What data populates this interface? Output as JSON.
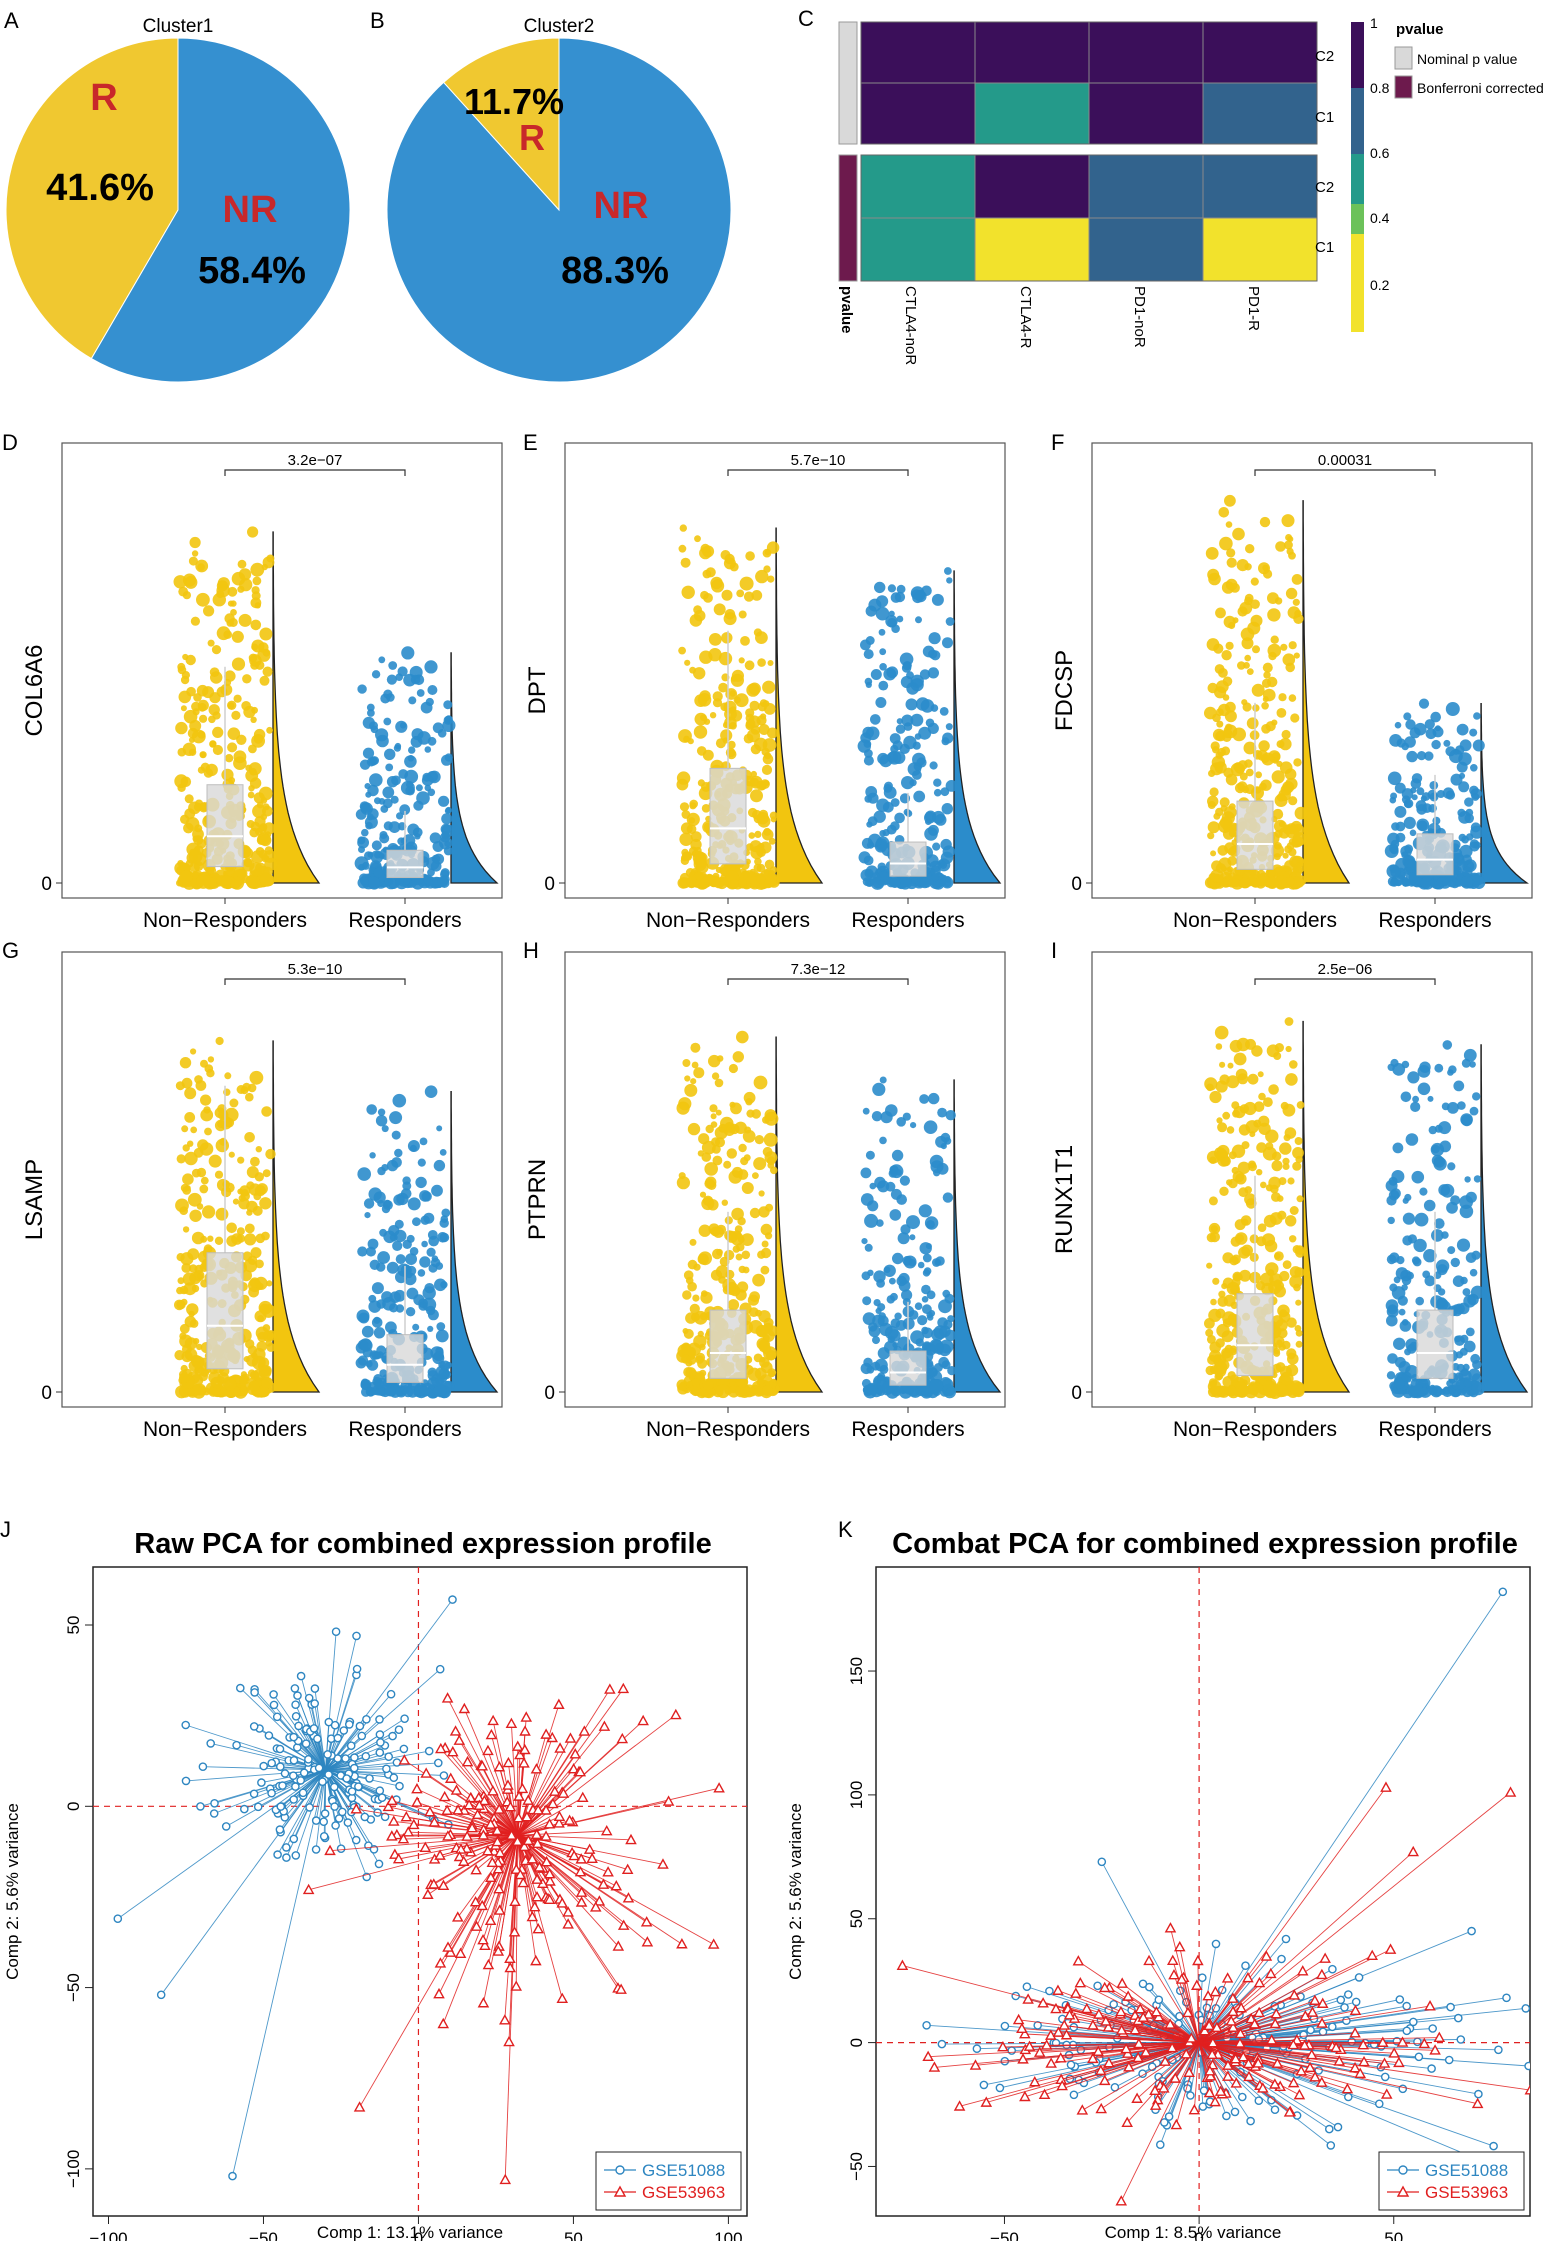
{
  "panel_letters": [
    "A",
    "B",
    "C",
    "D",
    "E",
    "F",
    "G",
    "H",
    "I",
    "J",
    "K"
  ],
  "chart_data": [
    {
      "panel": "A",
      "type": "pie",
      "title": "Cluster1",
      "slices": [
        {
          "label": "R",
          "pct_label": "41.6%",
          "value": 41.6,
          "color": "#f0c830"
        },
        {
          "label": "NR",
          "pct_label": "58.4%",
          "value": 58.4,
          "color": "#3590d0"
        }
      ]
    },
    {
      "panel": "B",
      "type": "pie",
      "title": "Cluster2",
      "slices": [
        {
          "label": "R",
          "pct_label": "11.7%",
          "value": 11.7,
          "color": "#f0c830"
        },
        {
          "label": "NR",
          "pct_label": "88.3%",
          "value": 88.3,
          "color": "#3590d0"
        }
      ]
    },
    {
      "panel": "C",
      "type": "heatmap",
      "columns": [
        "CTLA4-noR",
        "CTLA4-R",
        "PD1-noR",
        "PD1-R"
      ],
      "row_labels": [
        "C2",
        "C1",
        "C2",
        "C1"
      ],
      "row_groups": [
        "Nominal p value",
        "Nominal p value",
        "Bonferroni corrected",
        "Bonferroni corrected"
      ],
      "values": [
        [
          1,
          1,
          1,
          1
        ],
        [
          1,
          0.5,
          1,
          0.75
        ],
        [
          0.5,
          1,
          0.75,
          0.75
        ],
        [
          0.5,
          0.1,
          0.75,
          0.1
        ]
      ],
      "annotation_label": "pvalue",
      "legend": {
        "title": "pvalue",
        "ticks": [
          "1",
          "0.8",
          "0.6",
          "0.4",
          "0.2"
        ],
        "tick_values": [
          1,
          0.8,
          0.6,
          0.4,
          0.2
        ],
        "colors": [
          "#3b0f5a",
          "#32638d",
          "#249a8a",
          "#6cc25a",
          "#f2e22c"
        ],
        "group_entries": [
          {
            "label": "Nominal p value",
            "color": "#d9d9d9"
          },
          {
            "label": "Bonferroni corrected",
            "color": "#6d1a4d"
          }
        ]
      }
    },
    {
      "panel": "D",
      "type": "scatter",
      "ylabel": "COL6A6",
      "categories": [
        "Non−Responders",
        "Responders"
      ],
      "pvalue": "3.2e−07",
      "y_tick": "0",
      "nr_max": 0.9,
      "r_max": 0.59,
      "nr_median": 0.12,
      "r_median": 0.04
    },
    {
      "panel": "E",
      "type": "scatter",
      "ylabel": "DPT",
      "categories": [
        "Non−Responders",
        "Responders"
      ],
      "pvalue": "5.7e−10",
      "y_tick": "0",
      "nr_max": 0.91,
      "r_max": 0.8,
      "nr_median": 0.14,
      "r_median": 0.05
    },
    {
      "panel": "F",
      "type": "scatter",
      "ylabel": "FDCSP",
      "categories": [
        "Non−Responders",
        "Responders"
      ],
      "pvalue": "0.00031",
      "y_tick": "0",
      "nr_max": 0.98,
      "r_max": 0.46,
      "nr_median": 0.1,
      "r_median": 0.06
    },
    {
      "panel": "G",
      "type": "scatter",
      "ylabel": "LSAMP",
      "categories": [
        "Non−Responders",
        "Responders"
      ],
      "pvalue": "5.3e−10",
      "y_tick": "0",
      "nr_max": 0.9,
      "r_max": 0.77,
      "nr_median": 0.17,
      "r_median": 0.07
    },
    {
      "panel": "H",
      "type": "scatter",
      "ylabel": "PTPRN",
      "categories": [
        "Non−Responders",
        "Responders"
      ],
      "pvalue": "7.3e−12",
      "y_tick": "0",
      "nr_max": 0.91,
      "r_max": 0.8,
      "nr_median": 0.1,
      "r_median": 0.05
    },
    {
      "panel": "I",
      "type": "scatter",
      "ylabel": "RUNX1T1",
      "categories": [
        "Non−Responders",
        "Responders"
      ],
      "pvalue": "2.5e−06",
      "y_tick": "0",
      "nr_max": 0.95,
      "r_max": 0.89,
      "nr_median": 0.12,
      "r_median": 0.1
    },
    {
      "panel": "J",
      "type": "scatter",
      "title": "Raw PCA for combined expression profile",
      "xlabel": "Comp 1: 13.1% variance",
      "ylabel": "Comp 2: 5.6% variance",
      "xlim": [
        -105,
        106
      ],
      "ylim": [
        -113,
        66
      ],
      "x_ticks": [
        -100,
        -50,
        0,
        50,
        100
      ],
      "y_ticks": [
        -100,
        -50,
        0,
        50
      ],
      "x_tick_labels": [
        "−100",
        "−50",
        "0",
        "50",
        "100"
      ],
      "y_tick_labels": [
        "−100",
        "−50",
        "0",
        "50"
      ],
      "series": [
        {
          "name": "GSE51088",
          "color": "#2e86c1",
          "marker": "circle",
          "centroid": [
            -30,
            10
          ],
          "spread": [
            16,
            14
          ],
          "n": 180,
          "outliers": [
            [
              -60,
              -102
            ],
            [
              -97,
              -31
            ],
            [
              11,
              57
            ],
            [
              -20,
              47
            ],
            [
              -75,
              7
            ],
            [
              -83,
              -52
            ]
          ]
        },
        {
          "name": "GSE53963",
          "color": "#e02020",
          "marker": "triangle",
          "centroid": [
            32,
            -8
          ],
          "spread": [
            22,
            20
          ],
          "n": 220,
          "outliers": [
            [
              28,
              -103
            ],
            [
              -19,
              -83
            ],
            [
              97,
              5
            ],
            [
              85,
              -38
            ],
            [
              8,
              -60
            ],
            [
              60,
              22
            ]
          ]
        }
      ],
      "legend_position": "bottom-right"
    },
    {
      "panel": "K",
      "type": "scatter",
      "title": "Combat PCA for combined expression profile",
      "xlabel": "Comp 1: 8.5% variance",
      "ylabel": "Comp 2: 5.6% variance",
      "xlim": [
        -83,
        85
      ],
      "ylim": [
        -70,
        192
      ],
      "x_ticks": [
        -50,
        0,
        50
      ],
      "y_ticks": [
        -50,
        0,
        50,
        100,
        150
      ],
      "x_tick_labels": [
        "−50",
        "0",
        "50"
      ],
      "y_tick_labels": [
        "−50",
        "0",
        "50",
        "100",
        "150"
      ],
      "series": [
        {
          "name": "GSE51088",
          "color": "#2e86c1",
          "marker": "circle",
          "centroid": [
            0,
            0
          ],
          "spread": [
            32,
            16
          ],
          "n": 190,
          "outliers": [
            [
              78,
              182
            ],
            [
              70,
              45
            ],
            [
              -70,
              7
            ],
            [
              -25,
              73
            ],
            [
              76,
              -50
            ]
          ]
        },
        {
          "name": "GSE53963",
          "color": "#e02020",
          "marker": "triangle",
          "centroid": [
            0,
            0
          ],
          "spread": [
            28,
            17
          ],
          "n": 200,
          "outliers": [
            [
              80,
              101
            ],
            [
              48,
              103
            ],
            [
              -20,
              -64
            ],
            [
              55,
              77
            ],
            [
              -68,
              -10
            ]
          ]
        }
      ],
      "legend_position": "bottom-right"
    }
  ]
}
